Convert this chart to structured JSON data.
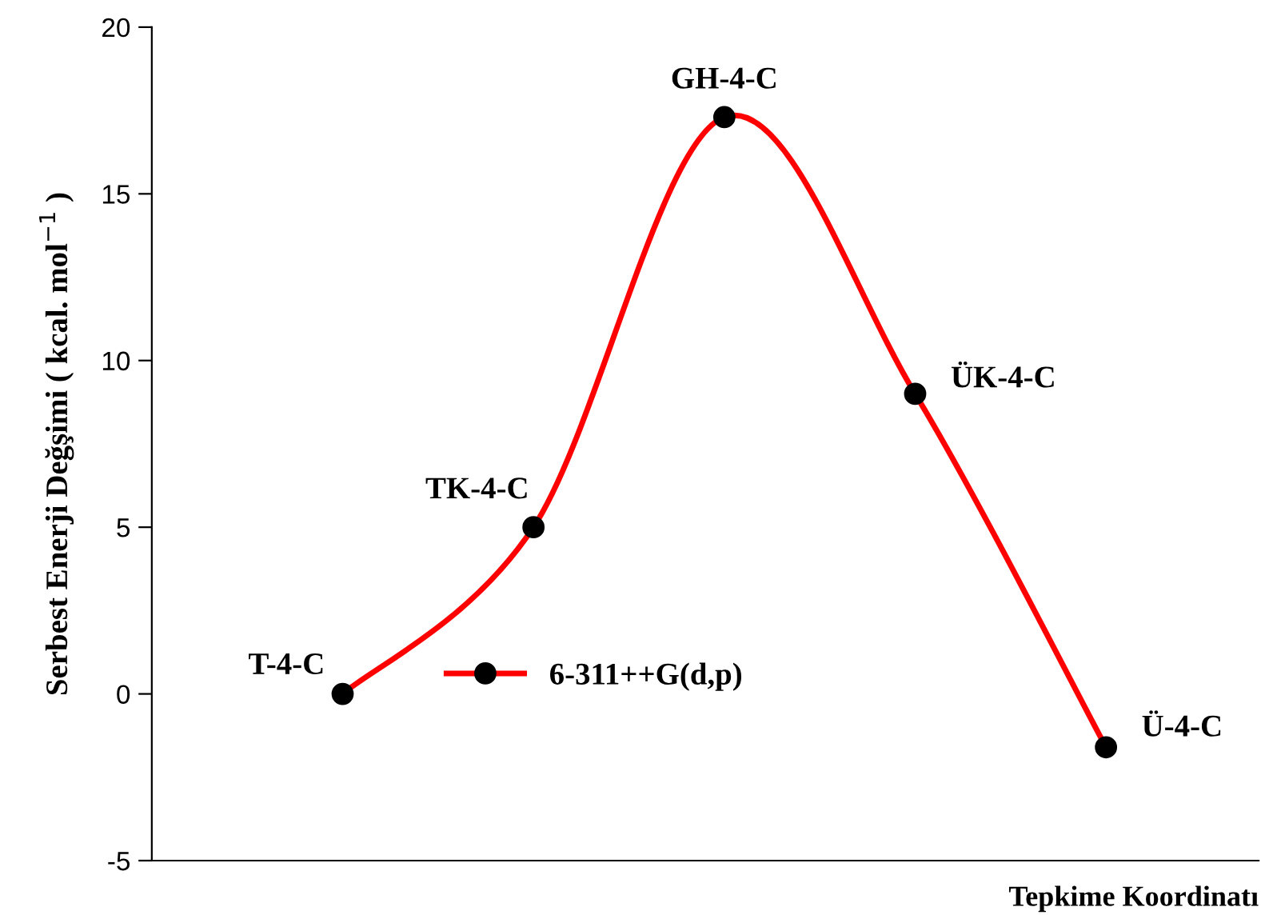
{
  "chart_data": {
    "type": "line",
    "ylabel": "Serbest Enerji Değşimi ( kcal. mol$^{−1}$ )",
    "xlabel": "Tepkime Koordinatı",
    "categories": [
      null,
      null,
      null,
      null,
      null
    ],
    "series": [
      {
        "name": "6-311++G(d,p)",
        "color": "#ff0000",
        "values": [
          0,
          5.0,
          17.3,
          9.0,
          -1.6
        ]
      }
    ],
    "ylim": [
      -5,
      20
    ],
    "yticks": [
      -5,
      0,
      5,
      10,
      15,
      20
    ],
    "marker": "circle",
    "line_style": "solid",
    "grid": false,
    "legend": "bottom",
    "tick_labels": "y",
    "annotations": [
      "T-4-C",
      "TK-4-C",
      "GH-4-C",
      "ÜK-4-C",
      "Ü-4-C"
    ]
  }
}
